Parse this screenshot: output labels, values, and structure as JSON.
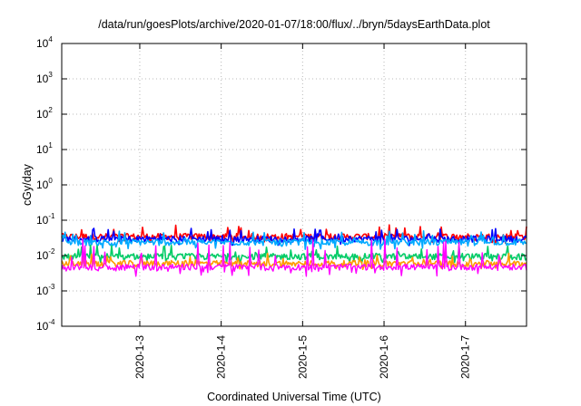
{
  "chart_data": {
    "type": "line",
    "title": "/data/run/goesPlots/archive/2020-01-07/18:00/flux/../bryn/5daysEarthData.plot",
    "xlabel": "Coordinated Universal Time (UTC)",
    "ylabel": "cGy/day",
    "y_scale": "log",
    "ylim": [
      0.0001,
      10000
    ],
    "y_ticks": [
      {
        "base": "10",
        "exp": "-4"
      },
      {
        "base": "10",
        "exp": "-3"
      },
      {
        "base": "10",
        "exp": "-2"
      },
      {
        "base": "10",
        "exp": "-1"
      },
      {
        "base": "10",
        "exp": "0"
      },
      {
        "base": "10",
        "exp": "1"
      },
      {
        "base": "10",
        "exp": "2"
      },
      {
        "base": "10",
        "exp": "3"
      },
      {
        "base": "10",
        "exp": "4"
      }
    ],
    "xlim": [
      "2020-01-02T01:00",
      "2020-01-07T18:00"
    ],
    "x_ticks": [
      "2020-1-3",
      "2020-1-4",
      "2020-1-5",
      "2020-1-6",
      "2020-1-7"
    ],
    "grid": true,
    "legend": "none",
    "series": [
      {
        "color": "#ff0000",
        "typical_value": 0.035,
        "spike_max": 0.075,
        "dip_min": 0.022
      },
      {
        "color": "#0000ff",
        "typical_value": 0.03,
        "spike_max": 0.06,
        "dip_min": 0.019
      },
      {
        "color": "#00aaff",
        "typical_value": 0.024,
        "spike_max": 0.05,
        "dip_min": 0.015
      },
      {
        "color": "#00cc66",
        "typical_value": 0.0095,
        "spike_max": 0.02,
        "dip_min": 0.006
      },
      {
        "color": "#ff9900",
        "typical_value": 0.006,
        "spike_max": 0.012,
        "dip_min": 0.004
      },
      {
        "color": "#ff00ff",
        "typical_value": 0.0048,
        "spike_max": 0.03,
        "dip_min": 0.0026
      }
    ]
  }
}
